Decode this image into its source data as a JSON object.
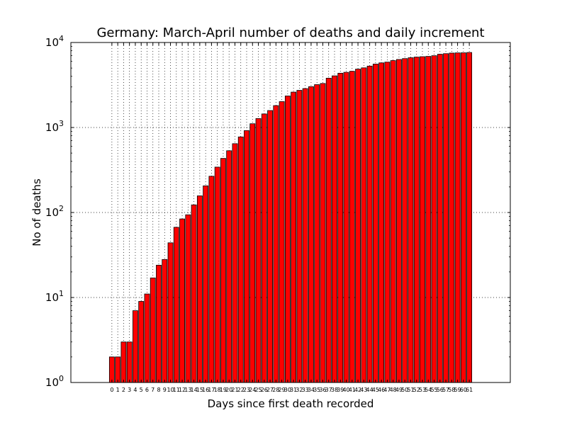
{
  "chart_data": {
    "type": "bar",
    "title": "Germany: March-April number of deaths and daily increment",
    "xlabel": "Days since first death recorded",
    "ylabel": "No of deaths",
    "yscale": "log",
    "ylim": [
      1,
      10000
    ],
    "xlim": [
      -7,
      68
    ],
    "grid": true,
    "bar_color": "#ff0000",
    "y_ticks": [
      {
        "base": "10",
        "exp": "0",
        "value": 1
      },
      {
        "base": "10",
        "exp": "1",
        "value": 10
      },
      {
        "base": "10",
        "exp": "2",
        "value": 100
      },
      {
        "base": "10",
        "exp": "3",
        "value": 1000
      },
      {
        "base": "10",
        "exp": "4",
        "value": 10000
      }
    ],
    "categories": [
      "0",
      "1",
      "2",
      "3",
      "4",
      "5",
      "6",
      "7",
      "8",
      "9",
      "10",
      "11",
      "12",
      "13",
      "14",
      "15",
      "16",
      "17",
      "18",
      "19",
      "20",
      "21",
      "22",
      "23",
      "24",
      "25",
      "26",
      "27",
      "28",
      "29",
      "30",
      "31",
      "32",
      "33",
      "34",
      "35",
      "36",
      "37",
      "38",
      "39",
      "40",
      "41",
      "42",
      "43",
      "44",
      "45",
      "46",
      "47",
      "48",
      "49",
      "50",
      "51",
      "52",
      "53",
      "54",
      "55",
      "56",
      "57",
      "58",
      "59",
      "60",
      "61"
    ],
    "values": [
      2,
      2,
      3,
      3,
      7,
      9,
      11,
      17,
      24,
      28,
      44,
      67,
      84,
      94,
      123,
      157,
      206,
      267,
      342,
      433,
      533,
      645,
      775,
      920,
      1107,
      1275,
      1444,
      1584,
      1810,
      2016,
      2349,
      2607,
      2736,
      2871,
      3022,
      3194,
      3294,
      3804,
      4052,
      4352,
      4459,
      4586,
      4862,
      5033,
      5279,
      5575,
      5760,
      5877,
      6126,
      6314,
      6467,
      6623,
      6736,
      6812,
      6866,
      6993,
      7275,
      7392,
      7510,
      7549,
      7569,
      7630
    ]
  }
}
